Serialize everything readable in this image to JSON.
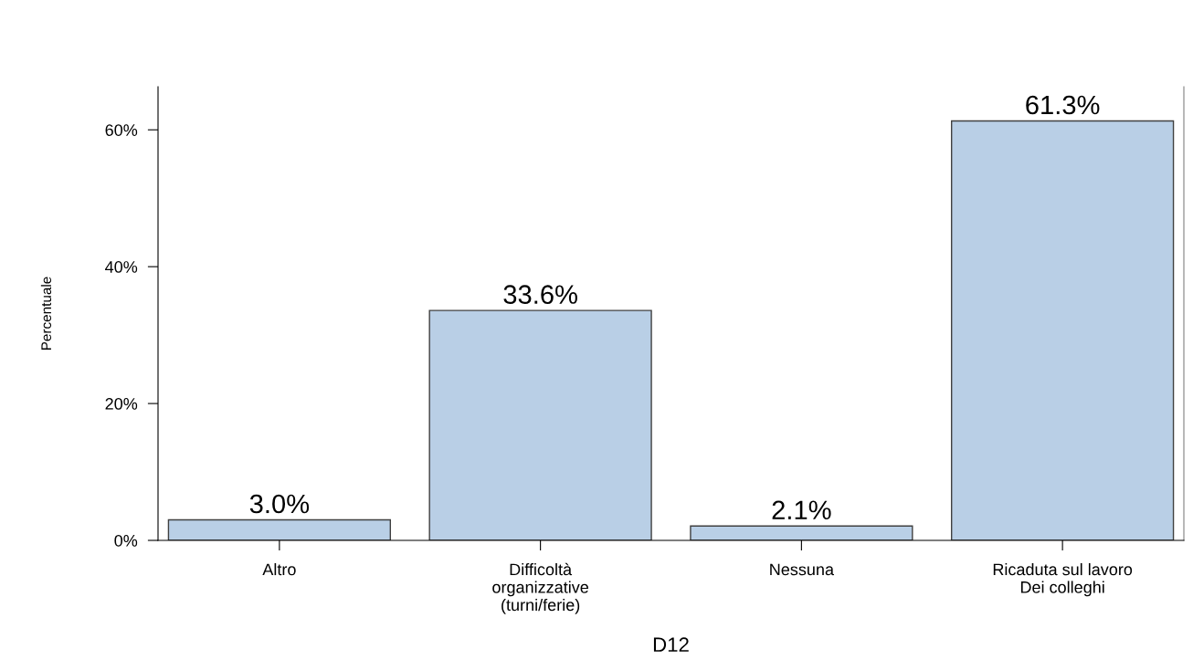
{
  "chart_data": {
    "type": "bar",
    "xlabel": "D12",
    "ylabel": "Percentuale",
    "categories": [
      "Altro",
      "Difficoltà\norganizzative\n(turni/ferie)",
      "Nessuna",
      "Ricaduta sul lavoro\nDei colleghi"
    ],
    "values": [
      3.0,
      33.6,
      2.1,
      61.3
    ],
    "color": "#b9cfe6",
    "value_labels": [
      "3.0%",
      "33.6%",
      "2.1%",
      "61.3%"
    ],
    "ylim": [
      0,
      66.3
    ],
    "yticks": [
      {
        "value": 0,
        "label": "0%"
      },
      {
        "value": 20,
        "label": "20%"
      },
      {
        "value": 40,
        "label": "40%"
      },
      {
        "value": 60,
        "label": "60%"
      }
    ]
  }
}
